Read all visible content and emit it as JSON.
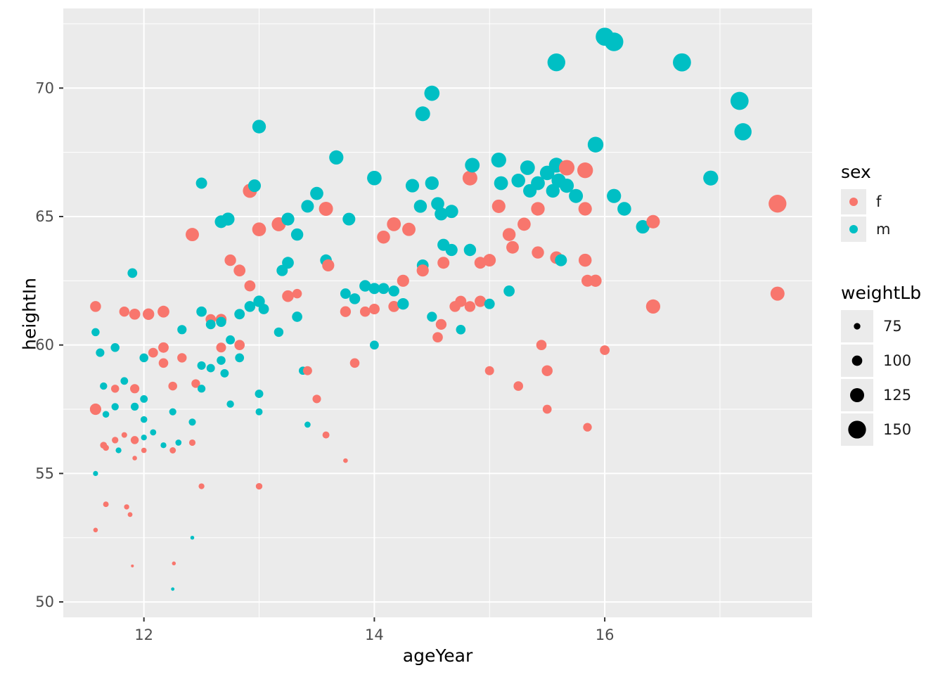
{
  "figure": {
    "background": "#FFFFFF",
    "panel_background": "#EBEBEB",
    "grid_color": "#FFFFFF",
    "tick_color": "#333333",
    "tick_label_color": "#4D4D4D"
  },
  "legend": {
    "sex_title": "sex",
    "sex_items": [
      {
        "label": "f",
        "color": "#F8766D"
      },
      {
        "label": "m",
        "color": "#00BFC4"
      }
    ],
    "size_title": "weightLb",
    "size_items": [
      {
        "label": "75",
        "value": 75
      },
      {
        "label": "100",
        "value": 100
      },
      {
        "label": "125",
        "value": 125
      },
      {
        "label": "150",
        "value": 150
      }
    ],
    "size_dot_color": "#000000"
  },
  "chart_data": {
    "type": "scatter",
    "title": "",
    "xlabel": "ageYear",
    "ylabel": "heightIn",
    "xlim": [
      11.3,
      17.8
    ],
    "ylim": [
      49.4,
      73.1
    ],
    "x_major_ticks": [
      12,
      14,
      16
    ],
    "x_minor_ticks": [
      13,
      15,
      17
    ],
    "y_major_ticks": [
      50,
      55,
      60,
      65,
      70
    ],
    "y_minor_ticks": [
      52.5,
      57.5,
      62.5,
      67.5,
      72.5
    ],
    "grid": true,
    "legend_position": "right",
    "series_key": "sex",
    "size_key": "weightLb",
    "colors": {
      "f": "#F8766D",
      "m": "#00BFC4"
    },
    "size_range_data": [
      50,
      172
    ],
    "size_range_radius": [
      2,
      15
    ],
    "points_format": [
      "sex",
      "ageYear",
      "heightIn",
      "weightLb"
    ],
    "points": [
      [
        "f",
        11.58,
        61.5,
        104
      ],
      [
        "f",
        11.58,
        57.5,
        107
      ],
      [
        "m",
        11.58,
        60.5,
        85
      ],
      [
        "m",
        11.58,
        55.0,
        65
      ],
      [
        "f",
        11.58,
        52.8,
        62
      ],
      [
        "m",
        11.62,
        59.7,
        88
      ],
      [
        "m",
        11.65,
        58.4,
        80
      ],
      [
        "f",
        11.65,
        56.1,
        77
      ],
      [
        "m",
        11.67,
        57.3,
        76
      ],
      [
        "f",
        11.67,
        53.8,
        68.5
      ],
      [
        "f",
        11.67,
        56.0,
        72
      ],
      [
        "m",
        11.75,
        59.9,
        90
      ],
      [
        "f",
        11.75,
        58.3,
        85
      ],
      [
        "m",
        11.75,
        57.6,
        80
      ],
      [
        "f",
        11.75,
        56.3,
        75
      ],
      [
        "m",
        11.78,
        55.9,
        70
      ],
      [
        "f",
        11.83,
        61.3,
        99
      ],
      [
        "f",
        11.83,
        56.5,
        69
      ],
      [
        "m",
        11.83,
        58.6,
        82
      ],
      [
        "f",
        11.85,
        53.7,
        66
      ],
      [
        "f",
        11.88,
        53.4,
        63
      ],
      [
        "m",
        11.9,
        62.8,
        96
      ],
      [
        "f",
        11.92,
        56.3,
        85
      ],
      [
        "f",
        11.92,
        58.3,
        93
      ],
      [
        "f",
        11.92,
        61.2,
        105
      ],
      [
        "m",
        11.92,
        57.6,
        84
      ],
      [
        "f",
        11.9,
        51.4,
        50.5
      ],
      [
        "f",
        11.92,
        55.6,
        62
      ],
      [
        "m",
        12.0,
        59.5,
        90
      ],
      [
        "m",
        12.0,
        57.9,
        82
      ],
      [
        "m",
        12.0,
        57.1,
        76
      ],
      [
        "m",
        12.0,
        56.4,
        70
      ],
      [
        "f",
        12.0,
        55.9,
        67
      ],
      [
        "f",
        12.04,
        61.2,
        108
      ],
      [
        "m",
        12.08,
        56.6,
        73
      ],
      [
        "f",
        12.08,
        59.7,
        96
      ],
      [
        "f",
        12.17,
        61.3,
        110
      ],
      [
        "f",
        12.17,
        59.9,
        101
      ],
      [
        "f",
        12.17,
        59.3,
        95
      ],
      [
        "m",
        12.17,
        56.1,
        70
      ],
      [
        "f",
        12.25,
        58.4,
        90
      ],
      [
        "m",
        12.25,
        57.4,
        79
      ],
      [
        "f",
        12.25,
        55.9,
        73
      ],
      [
        "m",
        12.25,
        50.5,
        54
      ],
      [
        "f",
        12.26,
        51.5,
        57
      ],
      [
        "m",
        12.3,
        56.2,
        72
      ],
      [
        "f",
        12.33,
        59.5,
        94
      ],
      [
        "m",
        12.33,
        60.6,
        93
      ],
      [
        "f",
        12.42,
        64.3,
        120
      ],
      [
        "m",
        12.42,
        57.0,
        79
      ],
      [
        "f",
        12.42,
        56.2,
        74
      ],
      [
        "m",
        12.42,
        52.5,
        57
      ],
      [
        "f",
        12.45,
        58.5,
        89
      ],
      [
        "m",
        12.5,
        66.3,
        106
      ],
      [
        "m",
        12.5,
        61.3,
        100
      ],
      [
        "m",
        12.5,
        59.2,
        88
      ],
      [
        "m",
        12.5,
        58.3,
        84
      ],
      [
        "f",
        12.5,
        54.5,
        70
      ],
      [
        "f",
        12.58,
        61.0,
        100
      ],
      [
        "m",
        12.58,
        60.8,
        96
      ],
      [
        "m",
        12.58,
        59.1,
        87
      ],
      [
        "m",
        12.67,
        64.8,
        116
      ],
      [
        "f",
        12.67,
        61.0,
        104
      ],
      [
        "m",
        12.67,
        60.9,
        99
      ],
      [
        "f",
        12.67,
        59.9,
        97
      ],
      [
        "m",
        12.67,
        59.4,
        90
      ],
      [
        "m",
        12.7,
        58.9,
        87
      ],
      [
        "f",
        12.75,
        63.3,
        108
      ],
      [
        "m",
        12.75,
        60.2,
        92
      ],
      [
        "m",
        12.75,
        57.7,
        80
      ],
      [
        "m",
        12.73,
        64.9,
        118
      ],
      [
        "f",
        12.83,
        62.9,
        110
      ],
      [
        "f",
        12.83,
        60.0,
        100
      ],
      [
        "m",
        12.83,
        59.5,
        91
      ],
      [
        "m",
        12.83,
        61.2,
        101
      ],
      [
        "f",
        12.92,
        66.0,
        125
      ],
      [
        "m",
        12.96,
        66.2,
        116
      ],
      [
        "m",
        13.0,
        68.5,
        122
      ],
      [
        "f",
        12.92,
        62.3,
        105
      ],
      [
        "m",
        12.92,
        61.5,
        104
      ],
      [
        "f",
        13.0,
        64.5,
        123.5
      ],
      [
        "m",
        13.0,
        61.7,
        108
      ],
      [
        "m",
        13.04,
        61.4,
        101
      ],
      [
        "m",
        13.0,
        57.4,
        78
      ],
      [
        "f",
        13.0,
        54.5,
        75
      ],
      [
        "m",
        13.0,
        58.1,
        87
      ],
      [
        "f",
        13.17,
        64.7,
        125
      ],
      [
        "m",
        13.25,
        64.9,
        117
      ],
      [
        "m",
        13.25,
        63.2,
        110
      ],
      [
        "m",
        13.2,
        62.9,
        106
      ],
      [
        "m",
        13.17,
        60.5,
        94
      ],
      [
        "f",
        13.25,
        61.9,
        109
      ],
      [
        "m",
        13.33,
        64.3,
        113
      ],
      [
        "f",
        13.33,
        62.0,
        94.5
      ],
      [
        "m",
        13.33,
        61.1,
        100
      ],
      [
        "m",
        13.38,
        59.0,
        86
      ],
      [
        "f",
        13.42,
        59.0,
        92
      ],
      [
        "m",
        13.42,
        56.9,
        72
      ],
      [
        "f",
        13.5,
        57.9,
        88
      ],
      [
        "f",
        13.58,
        56.5,
        78
      ],
      [
        "f",
        13.75,
        55.5,
        62
      ],
      [
        "m",
        13.42,
        65.4,
        116
      ],
      [
        "m",
        13.5,
        65.9,
        119
      ],
      [
        "f",
        13.58,
        65.3,
        125
      ],
      [
        "m",
        13.58,
        63.3,
        109
      ],
      [
        "f",
        13.6,
        63.1,
        112
      ],
      [
        "m",
        13.67,
        67.3,
        126
      ],
      [
        "m",
        13.78,
        64.9,
        116
      ],
      [
        "m",
        13.75,
        62.0,
        101
      ],
      [
        "f",
        13.75,
        61.3,
        103
      ],
      [
        "f",
        13.83,
        59.3,
        95
      ],
      [
        "m",
        13.83,
        61.8,
        104
      ],
      [
        "f",
        13.92,
        61.3,
        100
      ],
      [
        "m",
        13.92,
        62.3,
        108
      ],
      [
        "m",
        14.0,
        66.5,
        128
      ],
      [
        "m",
        14.0,
        62.2,
        106
      ],
      [
        "m",
        14.0,
        60.0,
        91
      ],
      [
        "f",
        14.0,
        61.4,
        102
      ],
      [
        "f",
        14.08,
        64.2,
        118
      ],
      [
        "m",
        14.08,
        62.2,
        105
      ],
      [
        "f",
        14.17,
        64.7,
        124
      ],
      [
        "f",
        14.17,
        61.5,
        105
      ],
      [
        "m",
        14.17,
        62.1,
        104
      ],
      [
        "f",
        14.25,
        62.5,
        112
      ],
      [
        "f",
        14.3,
        64.5,
        120
      ],
      [
        "m",
        14.25,
        61.6,
        108
      ],
      [
        "m",
        14.33,
        66.2,
        121
      ],
      [
        "m",
        14.4,
        65.4,
        118
      ],
      [
        "m",
        14.42,
        69.0,
        130
      ],
      [
        "m",
        14.5,
        69.8,
        133
      ],
      [
        "m",
        14.5,
        66.3,
        122
      ],
      [
        "m",
        14.55,
        65.5,
        119
      ],
      [
        "m",
        14.42,
        63.1,
        110
      ],
      [
        "f",
        14.42,
        62.9,
        112
      ],
      [
        "m",
        14.5,
        61.1,
        98
      ],
      [
        "f",
        14.55,
        60.3,
        100
      ],
      [
        "f",
        14.58,
        60.8,
        103
      ],
      [
        "m",
        14.58,
        65.1,
        118
      ],
      [
        "m",
        14.6,
        63.9,
        112
      ],
      [
        "f",
        14.6,
        63.2,
        111
      ],
      [
        "m",
        14.67,
        65.2,
        120
      ],
      [
        "m",
        14.67,
        63.7,
        112
      ],
      [
        "f",
        14.7,
        61.5,
        104
      ],
      [
        "f",
        14.75,
        61.7,
        106
      ],
      [
        "m",
        14.75,
        60.6,
        95
      ],
      [
        "f",
        14.83,
        66.5,
        130
      ],
      [
        "m",
        14.85,
        67.0,
        129
      ],
      [
        "m",
        14.83,
        63.7,
        113
      ],
      [
        "f",
        14.83,
        61.5,
        103.5
      ],
      [
        "f",
        14.92,
        63.2,
        110
      ],
      [
        "f",
        14.92,
        61.7,
        107
      ],
      [
        "f",
        15.0,
        63.3,
        115
      ],
      [
        "f",
        15.0,
        59.0,
        92
      ],
      [
        "m",
        15.0,
        61.6,
        101
      ],
      [
        "m",
        15.08,
        67.2,
        131
      ],
      [
        "m",
        15.1,
        66.3,
        124
      ],
      [
        "f",
        15.08,
        65.4,
        121
      ],
      [
        "f",
        15.17,
        64.3,
        118
      ],
      [
        "f",
        15.2,
        63.8,
        115
      ],
      [
        "m",
        15.17,
        62.1,
        105
      ],
      [
        "f",
        15.25,
        58.4,
        95
      ],
      [
        "m",
        15.25,
        66.4,
        123
      ],
      [
        "m",
        15.33,
        66.9,
        129
      ],
      [
        "m",
        15.35,
        66.0,
        121
      ],
      [
        "f",
        15.3,
        64.7,
        119
      ],
      [
        "f",
        15.42,
        65.3,
        122
      ],
      [
        "f",
        15.42,
        63.6,
        113
      ],
      [
        "m",
        15.42,
        66.3,
        124
      ],
      [
        "f",
        15.45,
        60.0,
        100
      ],
      [
        "f",
        15.5,
        59.0,
        104
      ],
      [
        "f",
        15.5,
        57.5,
        91
      ],
      [
        "m",
        15.5,
        66.7,
        128
      ],
      [
        "m",
        15.55,
        66.0,
        122
      ],
      [
        "m",
        15.58,
        67.0,
        131
      ],
      [
        "m",
        15.6,
        66.4,
        126
      ],
      [
        "m",
        15.58,
        71.0,
        150
      ],
      [
        "f",
        15.58,
        63.4,
        115
      ],
      [
        "m",
        15.62,
        63.3,
        111
      ],
      [
        "f",
        15.67,
        66.9,
        135
      ],
      [
        "m",
        15.67,
        66.2,
        126
      ],
      [
        "f",
        15.83,
        66.8,
        136
      ],
      [
        "m",
        15.75,
        65.8,
        125
      ],
      [
        "f",
        15.83,
        65.3,
        121
      ],
      [
        "f",
        15.83,
        63.3,
        118
      ],
      [
        "f",
        15.85,
        62.5,
        111
      ],
      [
        "f",
        15.85,
        56.8,
        89
      ],
      [
        "f",
        15.92,
        62.5,
        112.5
      ],
      [
        "f",
        16.0,
        59.8,
        96
      ],
      [
        "m",
        15.92,
        67.8,
        136
      ],
      [
        "m",
        16.0,
        72.0,
        152
      ],
      [
        "m",
        16.08,
        71.8,
        156
      ],
      [
        "m",
        16.08,
        65.8,
        126
      ],
      [
        "m",
        16.17,
        65.3,
        123
      ],
      [
        "m",
        16.33,
        64.6,
        121
      ],
      [
        "f",
        16.42,
        64.8,
        121
      ],
      [
        "f",
        16.42,
        61.5,
        126
      ],
      [
        "m",
        16.67,
        71.0,
        152
      ],
      [
        "m",
        16.92,
        66.5,
        131
      ],
      [
        "m",
        17.17,
        69.5,
        152
      ],
      [
        "m",
        17.2,
        68.3,
        146
      ],
      [
        "f",
        17.5,
        65.5,
        150
      ],
      [
        "f",
        17.5,
        62.0,
        125
      ]
    ]
  }
}
